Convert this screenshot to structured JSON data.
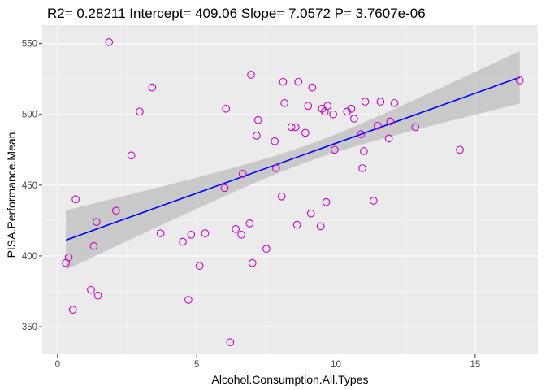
{
  "chart_data": {
    "type": "scatter",
    "title": "R2= 0.28211 Intercept= 409.06 Slope= 7.0572 P= 3.7607e-06",
    "xlabel": "Alcohol.Consumption.All.Types",
    "ylabel": "PISA.Performance.Mean",
    "xlim": [
      -0.55,
      17.25
    ],
    "ylim": [
      330.5,
      563
    ],
    "x_ticks": [
      0,
      5,
      10,
      15
    ],
    "y_ticks": [
      350,
      400,
      450,
      500,
      550
    ],
    "grid": true,
    "regression": {
      "intercept": 409.06,
      "slope": 7.0572,
      "x_range": [
        0.3,
        16.6
      ],
      "band_lower": [
        390,
        498
      ],
      "band_upper": [
        432,
        554
      ]
    },
    "colors": {
      "panel": "#ebebeb",
      "grid_major": "#ffffff",
      "points": "#cc00cc",
      "line": "#0000ff",
      "band": "#bebebe"
    },
    "points": [
      {
        "x": 0.3,
        "y": 395
      },
      {
        "x": 0.4,
        "y": 399
      },
      {
        "x": 0.55,
        "y": 362
      },
      {
        "x": 0.65,
        "y": 440
      },
      {
        "x": 1.2,
        "y": 376
      },
      {
        "x": 1.3,
        "y": 407
      },
      {
        "x": 1.4,
        "y": 424
      },
      {
        "x": 1.45,
        "y": 372
      },
      {
        "x": 1.85,
        "y": 551
      },
      {
        "x": 2.1,
        "y": 432
      },
      {
        "x": 2.65,
        "y": 471
      },
      {
        "x": 2.95,
        "y": 502
      },
      {
        "x": 3.4,
        "y": 519
      },
      {
        "x": 3.7,
        "y": 416
      },
      {
        "x": 4.5,
        "y": 410
      },
      {
        "x": 4.7,
        "y": 369
      },
      {
        "x": 4.8,
        "y": 415
      },
      {
        "x": 5.1,
        "y": 393
      },
      {
        "x": 5.3,
        "y": 416
      },
      {
        "x": 6.0,
        "y": 448
      },
      {
        "x": 6.05,
        "y": 504
      },
      {
        "x": 6.2,
        "y": 339
      },
      {
        "x": 6.4,
        "y": 419
      },
      {
        "x": 6.6,
        "y": 415
      },
      {
        "x": 6.65,
        "y": 458
      },
      {
        "x": 6.9,
        "y": 423
      },
      {
        "x": 6.95,
        "y": 528
      },
      {
        "x": 7.0,
        "y": 395
      },
      {
        "x": 7.15,
        "y": 485
      },
      {
        "x": 7.2,
        "y": 496
      },
      {
        "x": 7.5,
        "y": 405
      },
      {
        "x": 7.8,
        "y": 481
      },
      {
        "x": 7.85,
        "y": 462
      },
      {
        "x": 8.05,
        "y": 442
      },
      {
        "x": 8.1,
        "y": 523
      },
      {
        "x": 8.15,
        "y": 508
      },
      {
        "x": 8.4,
        "y": 491
      },
      {
        "x": 8.55,
        "y": 491
      },
      {
        "x": 8.6,
        "y": 422
      },
      {
        "x": 8.65,
        "y": 523
      },
      {
        "x": 8.9,
        "y": 487
      },
      {
        "x": 9.0,
        "y": 506
      },
      {
        "x": 9.1,
        "y": 430
      },
      {
        "x": 9.15,
        "y": 519
      },
      {
        "x": 9.45,
        "y": 421
      },
      {
        "x": 9.5,
        "y": 504
      },
      {
        "x": 9.6,
        "y": 502
      },
      {
        "x": 9.65,
        "y": 438
      },
      {
        "x": 9.7,
        "y": 506
      },
      {
        "x": 9.9,
        "y": 500
      },
      {
        "x": 9.95,
        "y": 475
      },
      {
        "x": 10.4,
        "y": 502
      },
      {
        "x": 10.55,
        "y": 504
      },
      {
        "x": 10.65,
        "y": 497
      },
      {
        "x": 10.9,
        "y": 486
      },
      {
        "x": 10.95,
        "y": 462
      },
      {
        "x": 11.0,
        "y": 474
      },
      {
        "x": 11.05,
        "y": 509
      },
      {
        "x": 11.35,
        "y": 439
      },
      {
        "x": 11.5,
        "y": 492
      },
      {
        "x": 11.6,
        "y": 509
      },
      {
        "x": 11.9,
        "y": 483
      },
      {
        "x": 11.95,
        "y": 495
      },
      {
        "x": 12.1,
        "y": 508
      },
      {
        "x": 12.85,
        "y": 491
      },
      {
        "x": 14.45,
        "y": 475
      },
      {
        "x": 16.6,
        "y": 524
      }
    ]
  }
}
